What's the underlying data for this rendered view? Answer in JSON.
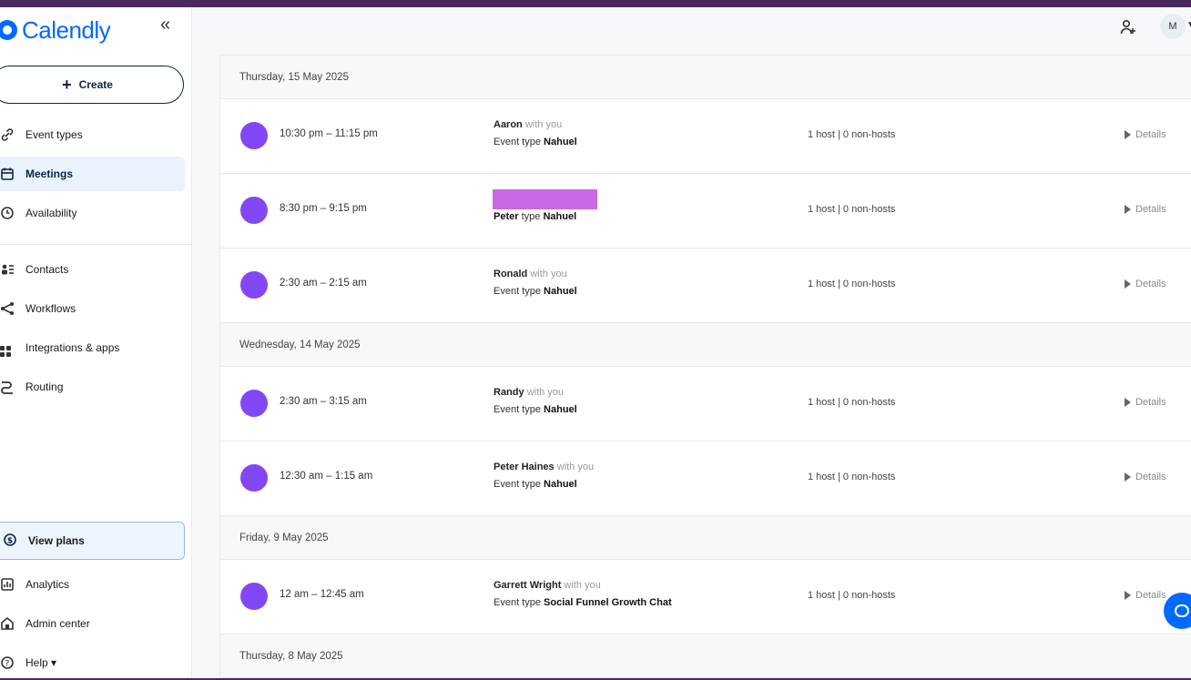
{
  "brand": {
    "name": "Calendly",
    "color": "#0069ff"
  },
  "sidebar": {
    "collapse_icon": "«",
    "create_label": "Create",
    "items": [
      {
        "label": "Event types",
        "icon": "link-icon"
      },
      {
        "label": "Meetings",
        "icon": "calendar-icon",
        "active": true
      },
      {
        "label": "Availability",
        "icon": "clock-icon"
      },
      {
        "label": "Contacts",
        "icon": "contacts-icon"
      },
      {
        "label": "Workflows",
        "icon": "workflow-icon"
      },
      {
        "label": "Integrations & apps",
        "icon": "apps-icon"
      },
      {
        "label": "Routing",
        "icon": "routing-icon"
      }
    ],
    "view_plans_label": "View plans",
    "bottom_items": [
      {
        "label": "Analytics",
        "icon": "analytics-icon"
      },
      {
        "label": "Admin center",
        "icon": "admin-icon"
      },
      {
        "label": "Help ▾",
        "icon": "help-icon"
      }
    ]
  },
  "topbar": {
    "avatar_initial": "M"
  },
  "meetings": {
    "groups": [
      {
        "date": "Thursday, 15 May 2025",
        "events": [
          {
            "time": "10:30 pm – 11:15 pm",
            "invitee": "Aaron",
            "with": "with you",
            "event_type_prefix": "Event type",
            "event_type": "Nahuel",
            "hosts": "1 host | 0 non-hosts",
            "details": "Details"
          },
          {
            "time": "8:30 pm – 9:15 pm",
            "invitee": "Peter",
            "with": "",
            "event_type_prefix": "type",
            "event_type": "Nahuel",
            "hosts": "1 host | 0 non-hosts",
            "details": "Details",
            "redacted": true
          },
          {
            "time": "2:30 am – 2:15 am",
            "invitee": "Ronald",
            "with": "with you",
            "event_type_prefix": "Event type",
            "event_type": "Nahuel",
            "hosts": "1 host | 0 non-hosts",
            "details": "Details"
          }
        ]
      },
      {
        "date": "Wednesday, 14 May 2025",
        "events": [
          {
            "time": "2:30 am – 3:15 am",
            "invitee": "Randy",
            "with": "with you",
            "event_type_prefix": "Event type",
            "event_type": "Nahuel",
            "hosts": "1 host | 0 non-hosts",
            "details": "Details"
          },
          {
            "time": "12:30 am – 1:15 am",
            "invitee": "Peter Haines",
            "with": "with you",
            "event_type_prefix": "Event type",
            "event_type": "Nahuel",
            "hosts": "1 host | 0 non-hosts",
            "details": "Details"
          }
        ]
      },
      {
        "date": "Friday, 9 May 2025",
        "events": [
          {
            "time": "12 am – 12:45 am",
            "invitee": "Garrett Wright",
            "with": "with you",
            "event_type_prefix": "Event type",
            "event_type": "Social Funnel Growth Chat",
            "hosts": "1 host | 0 non-hosts",
            "details": "Details"
          }
        ]
      },
      {
        "date": "Thursday, 8 May 2025",
        "events": []
      }
    ]
  },
  "colors": {
    "event_dot": "#8247f5",
    "active_nav_bg": "#eaf2fe",
    "redaction": "#c86ae6"
  }
}
